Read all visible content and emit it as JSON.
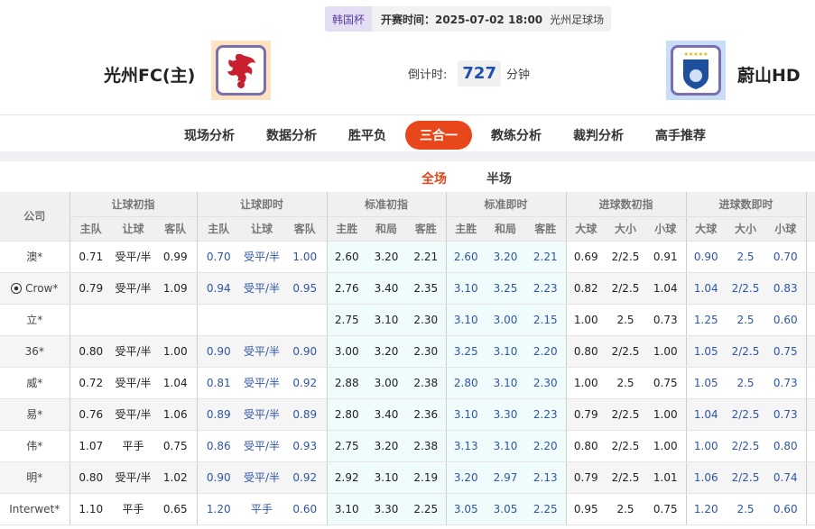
{
  "match": {
    "league": "韩国杯",
    "kickoff": "开赛时间：2025-07-02 18:00",
    "venue": "光州足球场",
    "home": "光州FC(主)",
    "away": "蔚山HD",
    "countdown_label": "倒计时:",
    "countdown_value": "727",
    "countdown_unit": "分钟"
  },
  "nav": {
    "items": [
      "现场分析",
      "数据分析",
      "胜平负",
      "三合一",
      "教练分析",
      "裁判分析",
      "高手推荐"
    ],
    "active": "三合一"
  },
  "subtabs": {
    "items": [
      "全场",
      "半场"
    ],
    "active": "全场"
  },
  "table": {
    "company_header": "公司",
    "groups": [
      "让球初指",
      "让球即时",
      "标准初指",
      "标准即时",
      "进球数初指",
      "进球数即时"
    ],
    "subheaders": [
      [
        "主队",
        "让球",
        "客队"
      ],
      [
        "主队",
        "让球",
        "客队"
      ],
      [
        "主胜",
        "和局",
        "客胜"
      ],
      [
        "主胜",
        "和局",
        "客胜"
      ],
      [
        "大球",
        "大小",
        "小球"
      ],
      [
        "大球",
        "大小",
        "小球"
      ]
    ],
    "rows": [
      {
        "company": "澳*",
        "v": [
          "0.71",
          "受平/半",
          "0.99",
          "0.70",
          "受平/半",
          "1.00",
          "2.60",
          "3.20",
          "2.21",
          "2.60",
          "3.20",
          "2.21",
          "0.69",
          "2/2.5",
          "0.91",
          "0.90",
          "2.5",
          "0.70"
        ]
      },
      {
        "company": "Crow*",
        "icon": "soccer-ball",
        "v": [
          "0.79",
          "受平/半",
          "1.09",
          "0.94",
          "受平/半",
          "0.95",
          "2.76",
          "3.40",
          "2.35",
          "3.10",
          "3.25",
          "2.23",
          "0.82",
          "2/2.5",
          "1.04",
          "1.04",
          "2/2.5",
          "0.83"
        ]
      },
      {
        "company": "立*",
        "v": [
          "",
          "",
          "",
          "",
          "",
          "",
          "2.75",
          "3.10",
          "2.30",
          "3.10",
          "3.00",
          "2.15",
          "1.00",
          "2.5",
          "0.73",
          "1.25",
          "2.5",
          "0.60"
        ]
      },
      {
        "company": "36*",
        "v": [
          "0.80",
          "受平/半",
          "1.00",
          "0.90",
          "受平/半",
          "0.90",
          "3.00",
          "3.20",
          "2.30",
          "3.25",
          "3.10",
          "2.20",
          "0.80",
          "2/2.5",
          "1.00",
          "1.05",
          "2/2.5",
          "0.75"
        ]
      },
      {
        "company": "威*",
        "v": [
          "0.72",
          "受平/半",
          "1.04",
          "0.81",
          "受平/半",
          "0.92",
          "2.88",
          "3.00",
          "2.38",
          "2.80",
          "3.10",
          "2.30",
          "1.00",
          "2.5",
          "0.75",
          "1.05",
          "2.5",
          "0.73"
        ]
      },
      {
        "company": "易*",
        "v": [
          "0.76",
          "受平/半",
          "1.06",
          "0.89",
          "受平/半",
          "0.89",
          "2.80",
          "3.40",
          "2.36",
          "3.10",
          "3.30",
          "2.23",
          "0.79",
          "2/2.5",
          "1.00",
          "1.04",
          "2/2.5",
          "0.73"
        ]
      },
      {
        "company": "伟*",
        "v": [
          "1.07",
          "平手",
          "0.75",
          "0.86",
          "受平/半",
          "0.93",
          "2.75",
          "3.20",
          "2.38",
          "3.13",
          "3.10",
          "2.20",
          "0.80",
          "2/2.5",
          "1.00",
          "1.00",
          "2/2.5",
          "0.80"
        ]
      },
      {
        "company": "明*",
        "v": [
          "0.80",
          "受平/半",
          "1.02",
          "0.90",
          "受平/半",
          "0.92",
          "2.92",
          "3.10",
          "2.19",
          "3.20",
          "2.97",
          "2.13",
          "0.79",
          "2/2.5",
          "1.01",
          "1.06",
          "2/2.5",
          "0.74"
        ]
      },
      {
        "company": "Interwet*",
        "v": [
          "1.10",
          "平手",
          "0.65",
          "1.20",
          "平手",
          "0.60",
          "3.10",
          "3.30",
          "2.25",
          "3.05",
          "3.05",
          "2.25",
          "0.95",
          "2.5",
          "0.75",
          "1.20",
          "2.5",
          "0.60"
        ]
      }
    ]
  },
  "colors": {
    "accent": "#e8471b",
    "live_value": "#2e56a6",
    "standard_bg": "#f0fcfc"
  }
}
